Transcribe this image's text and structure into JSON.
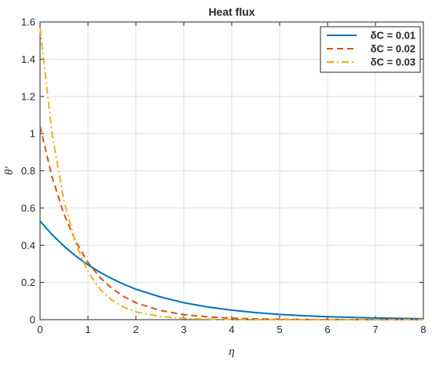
{
  "chart_data": {
    "type": "line",
    "title": "Heat flux",
    "xlabel": "η",
    "ylabel": "θ'",
    "xlim": [
      0,
      8
    ],
    "ylim": [
      0,
      1.6
    ],
    "xticks": [
      0,
      1,
      2,
      3,
      4,
      5,
      6,
      7,
      8
    ],
    "yticks": [
      0,
      0.2,
      0.4,
      0.6,
      0.8,
      1,
      1.2,
      1.4,
      1.6
    ],
    "grid": true,
    "legend_position": "top-right",
    "x": [
      0,
      0.25,
      0.5,
      0.75,
      1,
      1.25,
      1.5,
      1.75,
      2,
      2.5,
      3,
      3.5,
      4,
      4.5,
      5,
      5.5,
      6,
      6.5,
      7,
      7.5,
      8
    ],
    "series": [
      {
        "name": "δC = 0.01",
        "color": "#0072BD",
        "dash": "solid",
        "values": [
          0.53,
          0.457,
          0.395,
          0.341,
          0.295,
          0.255,
          0.22,
          0.19,
          0.164,
          0.123,
          0.091,
          0.068,
          0.051,
          0.038,
          0.028,
          0.021,
          0.016,
          0.012,
          0.009,
          0.007,
          0.005
        ]
      },
      {
        "name": "δC = 0.02",
        "color": "#D95319",
        "dash": "dashed",
        "values": [
          1.04,
          0.767,
          0.566,
          0.418,
          0.308,
          0.227,
          0.168,
          0.124,
          0.091,
          0.05,
          0.027,
          0.015,
          0.008,
          0.004,
          0.002,
          0.001,
          0.001,
          0.0,
          0.0,
          0.0,
          0.0
        ]
      },
      {
        "name": "δC = 0.03",
        "color": "#EDB120",
        "dash": "dashdot",
        "values": [
          1.57,
          1.0,
          0.636,
          0.405,
          0.258,
          0.164,
          0.105,
          0.067,
          0.042,
          0.017,
          0.007,
          0.003,
          0.001,
          0.0,
          0.0,
          0.0,
          0.0,
          0.0,
          0.0,
          0.0,
          0.0
        ]
      }
    ]
  }
}
